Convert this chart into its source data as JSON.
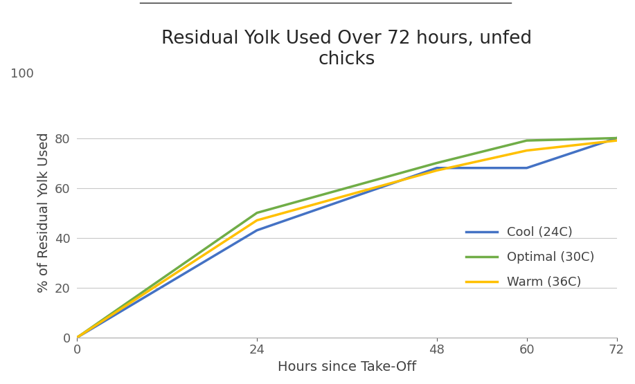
{
  "title_line1": "Residual Yolk Used Over 72 hours, unfed",
  "title_line2": "chicks",
  "xlabel": "Hours since Take-Off",
  "ylabel": "% of Residual Yolk Used",
  "x": [
    0,
    24,
    48,
    60,
    72
  ],
  "cool_24c": [
    0,
    43,
    68,
    68,
    80
  ],
  "optimal_30c": [
    0,
    50,
    70,
    79,
    80
  ],
  "warm_36c": [
    0,
    47,
    67,
    75,
    79
  ],
  "cool_color": "#4472C4",
  "optimal_color": "#70AD47",
  "warm_color": "#FFC000",
  "cool_label": "Cool (24C)",
  "optimal_label": "Optimal (30C)",
  "warm_label": "Warm (36C)",
  "ylim": [
    0,
    100
  ],
  "xlim": [
    0,
    72
  ],
  "yticks": [
    0,
    20,
    40,
    60,
    80
  ],
  "xticks": [
    0,
    24,
    48,
    60,
    72
  ],
  "linewidth": 2.5,
  "grid_color": "#C8C8C8",
  "background_color": "#FFFFFF",
  "title_fontsize": 19,
  "label_fontsize": 14,
  "tick_fontsize": 13,
  "legend_fontsize": 13,
  "tick_color": "#595959"
}
